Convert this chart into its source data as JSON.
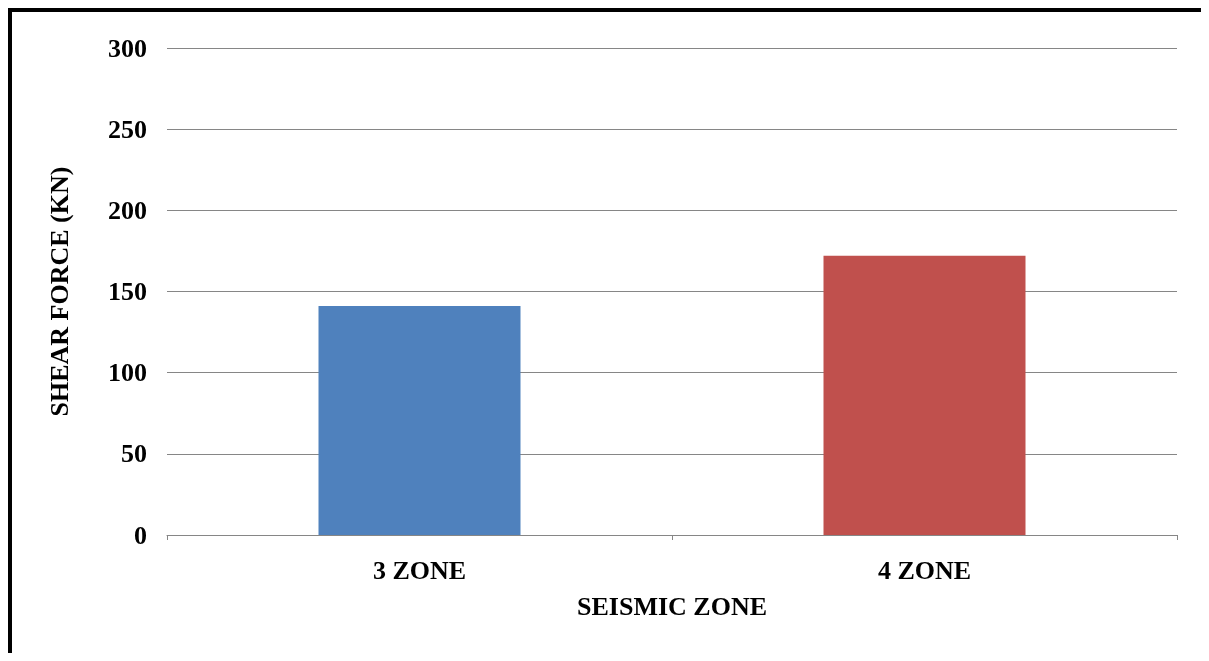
{
  "chart_data": {
    "type": "bar",
    "xlabel": "SEISMIC ZONE",
    "ylabel": "SHEAR FORCE (KN)",
    "categories": [
      "3 ZONE",
      "4 ZONE"
    ],
    "values": [
      141,
      172
    ],
    "colors": [
      "#4f81bd",
      "#c0504d"
    ],
    "ylim": [
      0,
      300
    ],
    "yticks": [
      0,
      50,
      100,
      150,
      200,
      250,
      300
    ],
    "grid": "y"
  }
}
